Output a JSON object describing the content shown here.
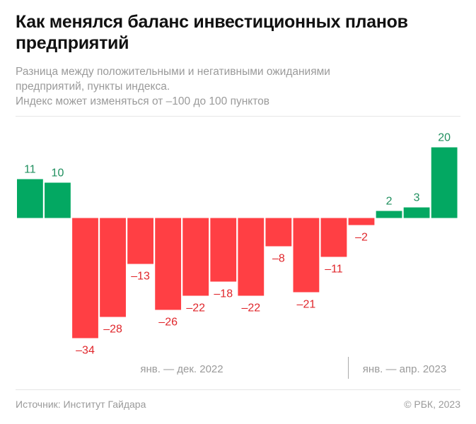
{
  "chart_data": {
    "type": "bar",
    "title": "Как менялся баланс инвестиционных планов предприятий",
    "subtitle_lines": [
      "Разница между положительными и негативными ожиданиями",
      "предприятий, пункты индекса.",
      "Индекс может изменяться от –100 до 100 пунктов"
    ],
    "values": [
      11,
      10,
      -34,
      -28,
      -13,
      -26,
      -22,
      -18,
      -22,
      -8,
      -21,
      -11,
      -2,
      2,
      3,
      20
    ],
    "value_labels": [
      "11",
      "10",
      "–34",
      "–28",
      "–13",
      "–26",
      "–22",
      "–18",
      "–22",
      "–8",
      "–21",
      "–11",
      "–2",
      "2",
      "3",
      "20"
    ],
    "period_labels": [
      "янв. — дек. 2022",
      "янв. — апр. 2023"
    ],
    "ylim": [
      -34,
      20
    ],
    "grid": false,
    "colors": {
      "positive": "#03a862",
      "negative": "#ff3f44",
      "positive_label": "#1f8f5e",
      "negative_label": "#e0262b"
    }
  },
  "footer": {
    "source": "Источник: Институт Гайдара",
    "copyright": "© РБК, 2023"
  }
}
